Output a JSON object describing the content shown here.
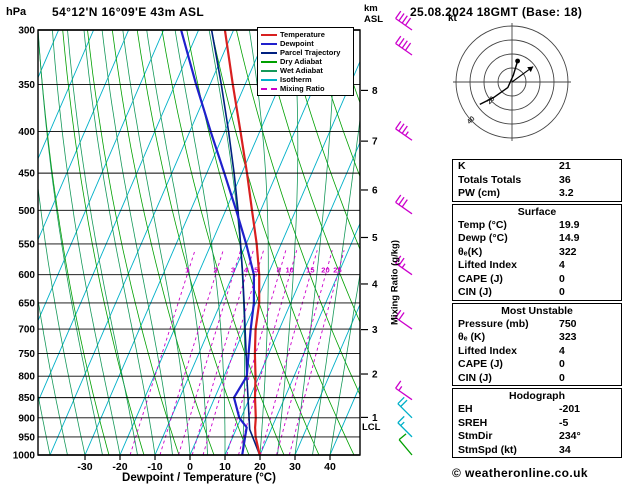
{
  "header": {
    "pressure_unit": "hPa",
    "station": "54°12'N 16°09'E 43m ASL",
    "datetime": "25.08.2024 18GMT (Base: 18)",
    "altitude_axis": "km\nASL",
    "copyright": "© weatheronline.co.uk"
  },
  "legend": {
    "items": [
      {
        "label": "Temperature",
        "color": "#d82020",
        "dash": false
      },
      {
        "label": "Dewpoint",
        "color": "#2020cc",
        "dash": false
      },
      {
        "label": "Parcel Trajectory",
        "color": "#002080",
        "dash": false
      },
      {
        "label": "Dry Adiabat",
        "color": "#00a000",
        "dash": false
      },
      {
        "label": "Wet Adiabat",
        "color": "#15995a",
        "dash": false
      },
      {
        "label": "Isotherm",
        "color": "#00b0c8",
        "dash": false
      },
      {
        "label": "Mixing Ratio",
        "color": "#cc00cc",
        "dash": true
      }
    ]
  },
  "axes": {
    "xlabel": "Dewpoint / Temperature (°C)",
    "right_label": "Mixing Ratio (g/kg)",
    "lcl_label": "LCL",
    "pressure_ticks": [
      300,
      350,
      400,
      450,
      500,
      550,
      600,
      650,
      700,
      750,
      800,
      850,
      900,
      950,
      1000
    ],
    "temp_ticks": [
      -30,
      -20,
      -10,
      0,
      10,
      20,
      30,
      40
    ],
    "km_ticks": [
      1,
      2,
      3,
      4,
      5,
      6,
      7,
      8
    ]
  },
  "chart_data": {
    "type": "line",
    "subtype": "skewt_logp_sounding",
    "title": "54°12'N 16°09'E 43m ASL  25.08.2024 18GMT (Base: 18)",
    "pressure_axis_hPa": {
      "min": 300,
      "max": 1000,
      "scale": "log"
    },
    "temp_axis_C": {
      "min": -30,
      "max": 40,
      "step": 10
    },
    "colors": {
      "temperature": "#d82020",
      "dewpoint": "#2020cc",
      "parcel": "#002080",
      "dry_adiabat": "#00a000",
      "wet_adiabat": "#15995a",
      "isotherm": "#00b0c8",
      "mixing_ratio": "#cc00cc",
      "pressure_line": "#000000"
    },
    "grid": {
      "isotherms_C": {
        "min": -100,
        "max": 40,
        "step": 10
      },
      "dry_adiabats_K": {
        "min": 250,
        "max": 390,
        "step": 10
      },
      "wet_adiabats_C": {
        "min": -60,
        "max": 40,
        "step": 5
      },
      "mixing_ratio_gkg": [
        1,
        2,
        3,
        4,
        5,
        8,
        10,
        15,
        20,
        25
      ]
    },
    "series": [
      {
        "name": "Parcel Trajectory",
        "color": "#002080",
        "width": 1.6,
        "points": [
          [
            1000,
            19.9
          ],
          [
            930,
            13.9
          ],
          [
            850,
            9.5
          ],
          [
            800,
            6.5
          ],
          [
            750,
            3.5
          ],
          [
            700,
            0.2
          ],
          [
            650,
            -3.3
          ],
          [
            600,
            -7.2
          ],
          [
            550,
            -11.6
          ],
          [
            500,
            -16.5
          ],
          [
            450,
            -22.2
          ],
          [
            400,
            -28.9
          ],
          [
            350,
            -36.8
          ],
          [
            300,
            -46.3
          ]
        ]
      },
      {
        "name": "Dewpoint",
        "color": "#2020cc",
        "width": 2.2,
        "points": [
          [
            1000,
            14.9
          ],
          [
            950,
            13.5
          ],
          [
            925,
            12.8
          ],
          [
            900,
            9.5
          ],
          [
            850,
            5.5
          ],
          [
            800,
            6.5
          ],
          [
            750,
            4.2
          ],
          [
            700,
            1.8
          ],
          [
            650,
            -0.5
          ],
          [
            600,
            -4.0
          ],
          [
            550,
            -10.0
          ],
          [
            500,
            -17.0
          ],
          [
            450,
            -25.0
          ],
          [
            400,
            -34.0
          ],
          [
            350,
            -44.0
          ],
          [
            300,
            -55.0
          ]
        ]
      },
      {
        "name": "Temperature",
        "color": "#d82020",
        "width": 2.2,
        "points": [
          [
            1000,
            19.9
          ],
          [
            950,
            16.5
          ],
          [
            925,
            15.2
          ],
          [
            900,
            14.2
          ],
          [
            850,
            11.5
          ],
          [
            800,
            9.0
          ],
          [
            750,
            6.0
          ],
          [
            700,
            3.2
          ],
          [
            650,
            1.0
          ],
          [
            600,
            -2.5
          ],
          [
            550,
            -7.0
          ],
          [
            500,
            -12.5
          ],
          [
            450,
            -18.5
          ],
          [
            400,
            -25.5
          ],
          [
            350,
            -33.5
          ],
          [
            300,
            -42.5
          ]
        ]
      }
    ],
    "winds": [
      {
        "p": 300,
        "kt": 40,
        "dir": 305,
        "color": "#cc00cc"
      },
      {
        "p": 322,
        "kt": 40,
        "dir": 305,
        "color": "#cc00cc"
      },
      {
        "p": 410,
        "kt": 35,
        "dir": 305,
        "color": "#cc00cc"
      },
      {
        "p": 505,
        "kt": 30,
        "dir": 305,
        "color": "#cc00cc"
      },
      {
        "p": 600,
        "kt": 25,
        "dir": 305,
        "color": "#cc00cc"
      },
      {
        "p": 700,
        "kt": 20,
        "dir": 305,
        "color": "#cc00cc"
      },
      {
        "p": 855,
        "kt": 15,
        "dir": 305,
        "color": "#cc00cc"
      },
      {
        "p": 900,
        "kt": 20,
        "dir": 315,
        "color": "#00b0c8"
      },
      {
        "p": 950,
        "kt": 15,
        "dir": 315,
        "color": "#00b0c8"
      },
      {
        "p": 1000,
        "kt": 10,
        "dir": 320,
        "color": "#00a000"
      }
    ],
    "km_pressures": {
      "1": 899,
      "2": 795,
      "3": 701,
      "4": 616,
      "5": 540,
      "6": 472,
      "7": 411,
      "8": 356
    },
    "lcl_hPa": 930
  },
  "hodograph": {
    "unit": "kt",
    "rings_kt": [
      10,
      20,
      30,
      40
    ],
    "ring_labels": [
      {
        "r_kt": 20,
        "text": "20"
      },
      {
        "r_kt": 40,
        "text": "40"
      }
    ],
    "trace_uv_kt": [
      [
        4,
        15
      ],
      [
        1,
        5
      ],
      [
        -3,
        -4
      ],
      [
        -13,
        -11
      ],
      [
        -23,
        -16
      ]
    ],
    "storm_motion": {
      "dir_deg": 234,
      "spd_kt": 34
    }
  },
  "tables": {
    "indices": {
      "rows": [
        {
          "label": "K",
          "value": "21"
        },
        {
          "label": "Totals Totals",
          "value": "36"
        },
        {
          "label": "PW (cm)",
          "value": "3.2"
        }
      ]
    },
    "surface": {
      "title": "Surface",
      "rows": [
        {
          "label": "Temp (°C)",
          "value": "19.9"
        },
        {
          "label": "Dewp (°C)",
          "value": "14.9"
        },
        {
          "label": "θₑ(K)",
          "value": "322"
        },
        {
          "label": "Lifted Index",
          "value": "4"
        },
        {
          "label": "CAPE (J)",
          "value": "0"
        },
        {
          "label": "CIN (J)",
          "value": "0"
        }
      ]
    },
    "most_unstable": {
      "title": "Most Unstable",
      "rows": [
        {
          "label": "Pressure (mb)",
          "value": "750"
        },
        {
          "label": "θₑ (K)",
          "value": "323"
        },
        {
          "label": "Lifted Index",
          "value": "4"
        },
        {
          "label": "CAPE (J)",
          "value": "0"
        },
        {
          "label": "CIN (J)",
          "value": "0"
        }
      ]
    },
    "hodograph": {
      "title": "Hodograph",
      "rows": [
        {
          "label": "EH",
          "value": "-201"
        },
        {
          "label": "SREH",
          "value": "-5"
        },
        {
          "label": "StmDir",
          "value": "234°"
        },
        {
          "label": "StmSpd (kt)",
          "value": "34"
        }
      ]
    }
  }
}
